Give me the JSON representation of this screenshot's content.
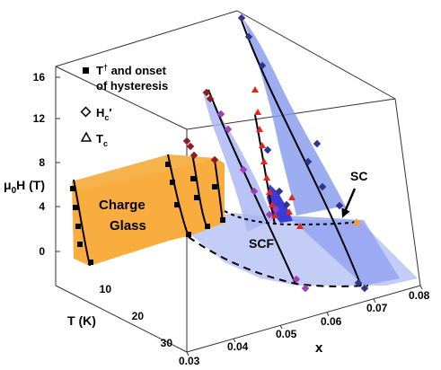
{
  "chart_data": {
    "type": "scatter",
    "projection": "3d",
    "axes": {
      "field": {
        "label_main": "μ",
        "label_sub": "0",
        "label_rest": "H (T)",
        "ticks": [
          "0",
          "4",
          "8",
          "12",
          "16"
        ],
        "range": [
          0,
          16
        ]
      },
      "temperature": {
        "label": "T (K)",
        "ticks": [
          "10",
          "20",
          "30"
        ],
        "range": [
          0,
          30
        ]
      },
      "doping": {
        "label": "x",
        "ticks": [
          "0.03",
          "0.04",
          "0.05",
          "0.06",
          "0.07",
          "0.08"
        ],
        "range": [
          0.03,
          0.08
        ]
      }
    },
    "legend": {
      "placement": "top-left",
      "items": [
        {
          "marker": "square",
          "label_pre": "T",
          "label_sup": "†",
          "label_post": " and onset",
          "label_line2": "of hysteresis"
        },
        {
          "marker": "diamond-open",
          "label_pre": "H",
          "label_sub": "c",
          "label_post": "′"
        },
        {
          "marker": "triangle-open",
          "label_pre": "T",
          "label_sub": "c",
          "label_post": ""
        }
      ]
    },
    "region_labels": {
      "charge_glass_line1": "Charge",
      "charge_glass_line2": "Glass",
      "scf": "SCF",
      "sc": "SC"
    },
    "series": [
      {
        "marker": "square",
        "color": "#000000"
      },
      {
        "marker": "diamond",
        "color_by_doping": [
          "#8b1a1a",
          "#7b2d8e",
          "#a43fb5",
          "#2e2a8c"
        ]
      },
      {
        "marker": "triangle",
        "color": "#e8231a"
      }
    ],
    "colors": {
      "charge_glass_fill": "#f8ad3e",
      "scf_plane_fill": "#b9c4f4",
      "sc_dome_fill": "#7d8ff0",
      "sc_apex_fill": "#3a3ad6",
      "hc_marker_blue": "#2e3490",
      "hc_marker_purple": "#a040b8",
      "hc_marker_darkred": "#8c1c20",
      "tc_marker": "#e8231a",
      "sc_arrow_triangle": "#f2a030"
    }
  }
}
